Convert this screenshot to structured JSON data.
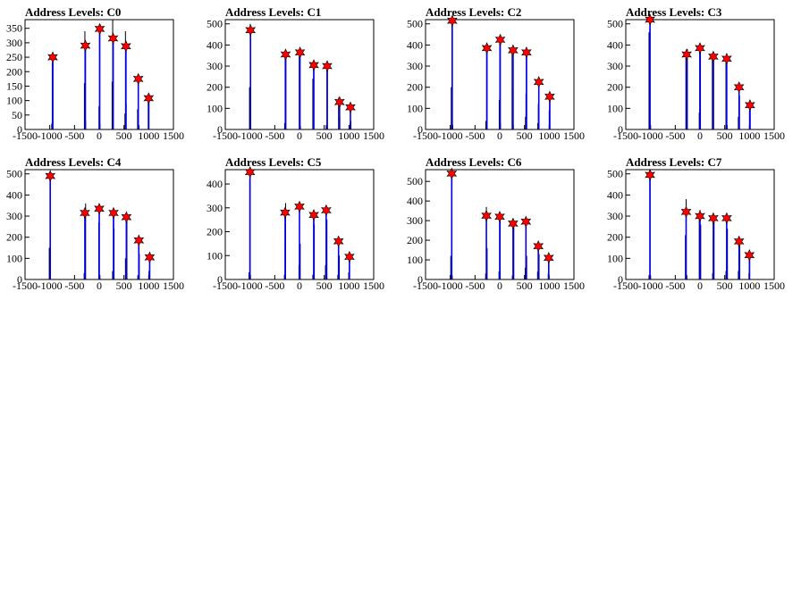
{
  "colors": {
    "hist": "#0000ff",
    "marker": "#ff0000",
    "frame": "#000000"
  },
  "chart_data": [
    {
      "type": "bar",
      "title": "Address Levels: C0",
      "xlim": [
        -1500,
        1500
      ],
      "ylim": [
        0,
        380
      ],
      "xticks": [
        -1500,
        -1000,
        -500,
        0,
        500,
        1000,
        1500
      ],
      "yticks": [
        0,
        50,
        100,
        150,
        200,
        250,
        300,
        350
      ],
      "peaks": [
        {
          "x": -940,
          "y": 250
        },
        {
          "x": -280,
          "y": 290
        },
        {
          "x": 10,
          "y": 348
        },
        {
          "x": 280,
          "y": 315
        },
        {
          "x": 540,
          "y": 288
        },
        {
          "x": 790,
          "y": 175
        },
        {
          "x": 1000,
          "y": 108
        }
      ],
      "spikes": [
        {
          "x": -960,
          "y": 20
        },
        {
          "x": -950,
          "y": 230
        },
        {
          "x": -935,
          "y": 245
        },
        {
          "x": -300,
          "y": 160
        },
        {
          "x": -290,
          "y": 340
        },
        {
          "x": -275,
          "y": 30
        },
        {
          "x": -5,
          "y": 80
        },
        {
          "x": 5,
          "y": 345
        },
        {
          "x": 15,
          "y": 20
        },
        {
          "x": 260,
          "y": 165
        },
        {
          "x": 272,
          "y": 380
        },
        {
          "x": 285,
          "y": 300
        },
        {
          "x": 520,
          "y": 55
        },
        {
          "x": 530,
          "y": 340
        },
        {
          "x": 545,
          "y": 90
        },
        {
          "x": 775,
          "y": 70
        },
        {
          "x": 790,
          "y": 180
        },
        {
          "x": 805,
          "y": 15
        },
        {
          "x": 990,
          "y": 95
        },
        {
          "x": 1005,
          "y": 108
        }
      ]
    },
    {
      "type": "bar",
      "title": "Address Levels: C1",
      "xlim": [
        -1500,
        1500
      ],
      "ylim": [
        0,
        520
      ],
      "xticks": [
        -1500,
        -1000,
        -500,
        0,
        500,
        1000,
        1500
      ],
      "yticks": [
        0,
        100,
        200,
        300,
        400,
        500
      ],
      "peaks": [
        {
          "x": -990,
          "y": 470
        },
        {
          "x": -280,
          "y": 355
        },
        {
          "x": 10,
          "y": 365
        },
        {
          "x": 290,
          "y": 305
        },
        {
          "x": 560,
          "y": 300
        },
        {
          "x": 810,
          "y": 130
        },
        {
          "x": 1030,
          "y": 105
        }
      ],
      "spikes": [
        {
          "x": -1010,
          "y": 200
        },
        {
          "x": -995,
          "y": 500
        },
        {
          "x": -985,
          "y": 20
        },
        {
          "x": -300,
          "y": 30
        },
        {
          "x": -290,
          "y": 360
        },
        {
          "x": -275,
          "y": 350
        },
        {
          "x": -5,
          "y": 370
        },
        {
          "x": 10,
          "y": 170
        },
        {
          "x": 20,
          "y": 15
        },
        {
          "x": 270,
          "y": 240
        },
        {
          "x": 285,
          "y": 320
        },
        {
          "x": 540,
          "y": 20
        },
        {
          "x": 555,
          "y": 280
        },
        {
          "x": 565,
          "y": 310
        },
        {
          "x": 790,
          "y": 150
        },
        {
          "x": 805,
          "y": 115
        },
        {
          "x": 815,
          "y": 60
        },
        {
          "x": 1020,
          "y": 30
        },
        {
          "x": 1030,
          "y": 90
        },
        {
          "x": 1040,
          "y": 40
        }
      ]
    },
    {
      "type": "bar",
      "title": "Address Levels: C2",
      "xlim": [
        -1500,
        1500
      ],
      "ylim": [
        0,
        520
      ],
      "xticks": [
        -1500,
        -1000,
        -500,
        0,
        500,
        1000,
        1500
      ],
      "yticks": [
        0,
        100,
        200,
        300,
        400,
        500
      ],
      "peaks": [
        {
          "x": -960,
          "y": 515
        },
        {
          "x": -260,
          "y": 385
        },
        {
          "x": 10,
          "y": 425
        },
        {
          "x": 270,
          "y": 375
        },
        {
          "x": 540,
          "y": 365
        },
        {
          "x": 790,
          "y": 225
        },
        {
          "x": 1010,
          "y": 155
        }
      ],
      "spikes": [
        {
          "x": -980,
          "y": 200
        },
        {
          "x": -965,
          "y": 510
        },
        {
          "x": -950,
          "y": 20
        },
        {
          "x": -280,
          "y": 40
        },
        {
          "x": -265,
          "y": 380
        },
        {
          "x": -255,
          "y": 370
        },
        {
          "x": -10,
          "y": 140
        },
        {
          "x": 0,
          "y": 420
        },
        {
          "x": 15,
          "y": 30
        },
        {
          "x": 250,
          "y": 370
        },
        {
          "x": 265,
          "y": 190
        },
        {
          "x": 275,
          "y": 20
        },
        {
          "x": 520,
          "y": 60
        },
        {
          "x": 530,
          "y": 170
        },
        {
          "x": 545,
          "y": 360
        },
        {
          "x": 770,
          "y": 30
        },
        {
          "x": 780,
          "y": 120
        },
        {
          "x": 795,
          "y": 210
        },
        {
          "x": 1000,
          "y": 90
        },
        {
          "x": 1015,
          "y": 150
        }
      ]
    },
    {
      "type": "bar",
      "title": "Address Levels: C3",
      "xlim": [
        -1500,
        1500
      ],
      "ylim": [
        0,
        520
      ],
      "xticks": [
        -1500,
        -1000,
        -500,
        0,
        500,
        1000,
        1500
      ],
      "yticks": [
        0,
        100,
        200,
        300,
        400,
        500
      ],
      "peaks": [
        {
          "x": -1010,
          "y": 520
        },
        {
          "x": -270,
          "y": 355
        },
        {
          "x": 0,
          "y": 385
        },
        {
          "x": 270,
          "y": 345
        },
        {
          "x": 540,
          "y": 335
        },
        {
          "x": 790,
          "y": 200
        },
        {
          "x": 1010,
          "y": 115
        }
      ],
      "spikes": [
        {
          "x": -1030,
          "y": 460
        },
        {
          "x": -1015,
          "y": 480
        },
        {
          "x": -1000,
          "y": 20
        },
        {
          "x": -285,
          "y": 360
        },
        {
          "x": -270,
          "y": 330
        },
        {
          "x": -255,
          "y": 380
        },
        {
          "x": -15,
          "y": 80
        },
        {
          "x": -5,
          "y": 390
        },
        {
          "x": 10,
          "y": 370
        },
        {
          "x": 250,
          "y": 340
        },
        {
          "x": 260,
          "y": 360
        },
        {
          "x": 275,
          "y": 320
        },
        {
          "x": 525,
          "y": 330
        },
        {
          "x": 540,
          "y": 300
        },
        {
          "x": 550,
          "y": 20
        },
        {
          "x": 775,
          "y": 60
        },
        {
          "x": 790,
          "y": 190
        },
        {
          "x": 800,
          "y": 160
        },
        {
          "x": 1000,
          "y": 90
        },
        {
          "x": 1015,
          "y": 110
        }
      ]
    },
    {
      "type": "bar",
      "title": "Address Levels: C4",
      "xlim": [
        -1500,
        1500
      ],
      "ylim": [
        0,
        520
      ],
      "xticks": [
        -1500,
        -1000,
        -500,
        0,
        500,
        1000,
        1500
      ],
      "yticks": [
        0,
        100,
        200,
        300,
        400,
        500
      ],
      "peaks": [
        {
          "x": -990,
          "y": 490
        },
        {
          "x": -290,
          "y": 315
        },
        {
          "x": 0,
          "y": 335
        },
        {
          "x": 290,
          "y": 315
        },
        {
          "x": 550,
          "y": 295
        },
        {
          "x": 800,
          "y": 185
        },
        {
          "x": 1020,
          "y": 105
        }
      ],
      "spikes": [
        {
          "x": -1010,
          "y": 150
        },
        {
          "x": -995,
          "y": 480
        },
        {
          "x": -985,
          "y": 20
        },
        {
          "x": -305,
          "y": 30
        },
        {
          "x": -290,
          "y": 310
        },
        {
          "x": -275,
          "y": 360
        },
        {
          "x": -10,
          "y": 270
        },
        {
          "x": 0,
          "y": 350
        },
        {
          "x": 15,
          "y": 20
        },
        {
          "x": 270,
          "y": 40
        },
        {
          "x": 285,
          "y": 320
        },
        {
          "x": 300,
          "y": 240
        },
        {
          "x": 530,
          "y": 100
        },
        {
          "x": 545,
          "y": 290
        },
        {
          "x": 560,
          "y": 280
        },
        {
          "x": 780,
          "y": 20
        },
        {
          "x": 795,
          "y": 180
        },
        {
          "x": 810,
          "y": 120
        },
        {
          "x": 1005,
          "y": 40
        },
        {
          "x": 1020,
          "y": 100
        }
      ]
    },
    {
      "type": "bar",
      "title": "Address Levels: C5",
      "xlim": [
        -1500,
        1500
      ],
      "ylim": [
        0,
        460
      ],
      "xticks": [
        -1500,
        -1000,
        -500,
        0,
        500,
        1000,
        1500
      ],
      "yticks": [
        0,
        100,
        200,
        300,
        400
      ],
      "peaks": [
        {
          "x": -1000,
          "y": 450
        },
        {
          "x": -290,
          "y": 280
        },
        {
          "x": 0,
          "y": 305
        },
        {
          "x": 290,
          "y": 270
        },
        {
          "x": 540,
          "y": 290
        },
        {
          "x": 790,
          "y": 160
        },
        {
          "x": 1010,
          "y": 95
        }
      ],
      "spikes": [
        {
          "x": -1020,
          "y": 30
        },
        {
          "x": -1005,
          "y": 420
        },
        {
          "x": -990,
          "y": 20
        },
        {
          "x": -305,
          "y": 20
        },
        {
          "x": -290,
          "y": 150
        },
        {
          "x": -280,
          "y": 320
        },
        {
          "x": -10,
          "y": 60
        },
        {
          "x": 0,
          "y": 300
        },
        {
          "x": 15,
          "y": 150
        },
        {
          "x": 270,
          "y": 20
        },
        {
          "x": 285,
          "y": 290
        },
        {
          "x": 300,
          "y": 230
        },
        {
          "x": 525,
          "y": 60
        },
        {
          "x": 540,
          "y": 280
        },
        {
          "x": 555,
          "y": 250
        },
        {
          "x": 775,
          "y": 20
        },
        {
          "x": 790,
          "y": 150
        },
        {
          "x": 805,
          "y": 100
        },
        {
          "x": 995,
          "y": 30
        },
        {
          "x": 1010,
          "y": 90
        }
      ]
    },
    {
      "type": "bar",
      "title": "Address Levels: C6",
      "xlim": [
        -1500,
        1500
      ],
      "ylim": [
        0,
        560
      ],
      "xticks": [
        -1500,
        -1000,
        -500,
        0,
        500,
        1000,
        1500
      ],
      "yticks": [
        0,
        100,
        200,
        300,
        400,
        500
      ],
      "peaks": [
        {
          "x": -970,
          "y": 540
        },
        {
          "x": -270,
          "y": 325
        },
        {
          "x": 0,
          "y": 320
        },
        {
          "x": 270,
          "y": 285
        },
        {
          "x": 530,
          "y": 295
        },
        {
          "x": 780,
          "y": 170
        },
        {
          "x": 990,
          "y": 110
        }
      ],
      "spikes": [
        {
          "x": -990,
          "y": 120
        },
        {
          "x": -975,
          "y": 530
        },
        {
          "x": -960,
          "y": 20
        },
        {
          "x": -285,
          "y": 30
        },
        {
          "x": -270,
          "y": 370
        },
        {
          "x": -255,
          "y": 160
        },
        {
          "x": -15,
          "y": 40
        },
        {
          "x": 0,
          "y": 330
        },
        {
          "x": 10,
          "y": 300
        },
        {
          "x": 255,
          "y": 20
        },
        {
          "x": 270,
          "y": 280
        },
        {
          "x": 285,
          "y": 270
        },
        {
          "x": 515,
          "y": 60
        },
        {
          "x": 530,
          "y": 290
        },
        {
          "x": 545,
          "y": 120
        },
        {
          "x": 765,
          "y": 40
        },
        {
          "x": 780,
          "y": 160
        },
        {
          "x": 795,
          "y": 130
        },
        {
          "x": 980,
          "y": 30
        },
        {
          "x": 995,
          "y": 100
        }
      ]
    },
    {
      "type": "bar",
      "title": "Address Levels: C7",
      "xlim": [
        -1500,
        1500
      ],
      "ylim": [
        0,
        520
      ],
      "xticks": [
        -1500,
        -1000,
        -500,
        0,
        500,
        1000,
        1500
      ],
      "yticks": [
        0,
        100,
        200,
        300,
        400,
        500
      ],
      "peaks": [
        {
          "x": -1010,
          "y": 495
        },
        {
          "x": -280,
          "y": 320
        },
        {
          "x": 0,
          "y": 300
        },
        {
          "x": 270,
          "y": 290
        },
        {
          "x": 540,
          "y": 290
        },
        {
          "x": 790,
          "y": 180
        },
        {
          "x": 1000,
          "y": 115
        }
      ],
      "spikes": [
        {
          "x": -1030,
          "y": 20
        },
        {
          "x": -1015,
          "y": 480
        },
        {
          "x": -1000,
          "y": 15
        },
        {
          "x": -295,
          "y": 210
        },
        {
          "x": -280,
          "y": 380
        },
        {
          "x": -265,
          "y": 20
        },
        {
          "x": -15,
          "y": 300
        },
        {
          "x": 0,
          "y": 330
        },
        {
          "x": 15,
          "y": 260
        },
        {
          "x": 255,
          "y": 30
        },
        {
          "x": 270,
          "y": 210
        },
        {
          "x": 285,
          "y": 280
        },
        {
          "x": 525,
          "y": 40
        },
        {
          "x": 540,
          "y": 280
        },
        {
          "x": 555,
          "y": 240
        },
        {
          "x": 775,
          "y": 40
        },
        {
          "x": 790,
          "y": 70
        },
        {
          "x": 805,
          "y": 170
        },
        {
          "x": 990,
          "y": 30
        },
        {
          "x": 1005,
          "y": 110
        }
      ]
    }
  ]
}
